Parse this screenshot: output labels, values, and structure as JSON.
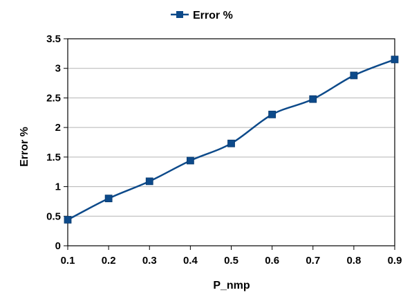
{
  "chart_data": {
    "type": "line",
    "title": "",
    "xlabel": "P_nmp",
    "ylabel": "Error %",
    "x": [
      0.1,
      0.2,
      0.3,
      0.4,
      0.5,
      0.6,
      0.7,
      0.8,
      0.9
    ],
    "x_ticks": [
      "0.1",
      "0.2",
      "0.3",
      "0.4",
      "0.5",
      "0.6",
      "0.7",
      "0.8",
      "0.9"
    ],
    "y_ticks": [
      "0",
      "0.5",
      "1",
      "1.5",
      "2",
      "2.5",
      "3",
      "3.5"
    ],
    "xlim": [
      0.1,
      0.9
    ],
    "ylim": [
      0,
      3.5
    ],
    "grid": true,
    "legend_position": "top-center",
    "series": [
      {
        "name": "Error %",
        "values": [
          0.44,
          0.8,
          1.09,
          1.44,
          1.73,
          2.22,
          2.48,
          2.88,
          3.15
        ],
        "color": "#0d4a8a",
        "marker": "square",
        "smooth": true
      }
    ]
  }
}
